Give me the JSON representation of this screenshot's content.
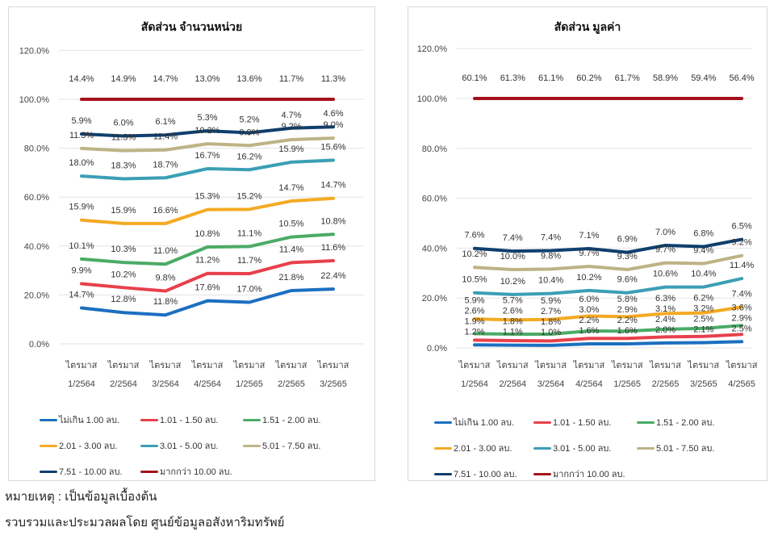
{
  "footer": {
    "note": "หมายเหตุ : เป็นข้อมูลเบื้องต้น",
    "source": "รวบรวมและประมวลผลโดย ศูนย์ข้อมูลอสังหาริมทรัพย์"
  },
  "chart_data": [
    {
      "type": "line",
      "stacked": true,
      "title": "สัดส่วน จำนวนหน่วย",
      "category_prefix": "ไตรมาส",
      "categories": [
        "1/2564",
        "2/2564",
        "3/2564",
        "4/2564",
        "1/2565",
        "2/2565",
        "3/2565"
      ],
      "yticks": [
        "0.0%",
        "20.0%",
        "40.0%",
        "60.0%",
        "80.0%",
        "100.0%",
        "120.0%"
      ],
      "ylim": [
        0,
        120
      ],
      "legend": "bottom",
      "series": [
        {
          "name": "ไม่เกิน 1.00 ลบ.",
          "color": "#1b6fc0",
          "values": [
            14.7,
            12.8,
            11.8,
            17.6,
            17.0,
            21.8,
            22.4
          ]
        },
        {
          "name": "1.01 - 1.50 ลบ.",
          "color": "#e8404c",
          "values": [
            9.9,
            10.2,
            9.8,
            11.2,
            11.7,
            11.4,
            11.6
          ]
        },
        {
          "name": "1.51 - 2.00 ลบ.",
          "color": "#4bab66",
          "values": [
            10.1,
            10.3,
            11.0,
            10.8,
            11.1,
            10.5,
            10.8
          ]
        },
        {
          "name": "2.01 - 3.00 ลบ.",
          "color": "#f4aa23",
          "values": [
            15.9,
            15.9,
            16.6,
            15.3,
            15.2,
            14.7,
            14.7
          ]
        },
        {
          "name": "3.01 - 5.00 ลบ.",
          "color": "#3b9fb5",
          "values": [
            18.0,
            18.3,
            18.7,
            16.7,
            16.2,
            15.9,
            15.6
          ]
        },
        {
          "name": "5.01 - 7.50 ลบ.",
          "color": "#bdb385",
          "values": [
            11.3,
            11.5,
            11.4,
            10.2,
            9.9,
            9.2,
            9.0
          ]
        },
        {
          "name": "7.51 - 10.00 ลบ.",
          "color": "#0f3f6e",
          "values": [
            5.9,
            6.0,
            6.1,
            5.3,
            5.2,
            4.7,
            4.6
          ]
        },
        {
          "name": "มากกว่า 10.00 ลบ.",
          "color": "#a5121c",
          "values": [
            14.4,
            14.9,
            14.7,
            13.0,
            13.6,
            11.7,
            11.3
          ]
        }
      ]
    },
    {
      "type": "line",
      "stacked": true,
      "title": "สัดส่วน มูลค่า",
      "category_prefix": "ไตรมาส",
      "categories": [
        "1/2564",
        "2/2564",
        "3/2564",
        "4/2564",
        "1/2565",
        "2/2565",
        "3/2565",
        "4/2565"
      ],
      "yticks": [
        "0.0%",
        "20.0%",
        "40.0%",
        "60.0%",
        "80.0%",
        "100.0%",
        "120.0%"
      ],
      "ylim": [
        0,
        120
      ],
      "legend": "bottom",
      "series": [
        {
          "name": "ไม่เกิน 1.00 ลบ.",
          "color": "#1b6fc0",
          "values": [
            1.2,
            1.1,
            1.0,
            1.6,
            1.6,
            2.0,
            2.1,
            2.5
          ]
        },
        {
          "name": "1.01 - 1.50 ลบ.",
          "color": "#e8404c",
          "values": [
            1.9,
            1.8,
            1.8,
            2.2,
            2.2,
            2.4,
            2.5,
            2.9
          ]
        },
        {
          "name": "1.51 - 2.00 ลบ.",
          "color": "#4bab66",
          "values": [
            2.6,
            2.6,
            2.7,
            3.0,
            2.9,
            3.1,
            3.2,
            3.6
          ]
        },
        {
          "name": "2.01 - 3.00 ลบ.",
          "color": "#f4aa23",
          "values": [
            5.9,
            5.7,
            5.9,
            6.0,
            5.8,
            6.3,
            6.2,
            7.4
          ]
        },
        {
          "name": "3.01 - 5.00 ลบ.",
          "color": "#3b9fb5",
          "values": [
            10.5,
            10.2,
            10.4,
            10.2,
            9.6,
            10.6,
            10.4,
            11.4
          ]
        },
        {
          "name": "5.01 - 7.50 ลบ.",
          "color": "#bdb385",
          "values": [
            10.2,
            10.0,
            9.8,
            9.7,
            9.3,
            9.7,
            9.4,
            9.2
          ]
        },
        {
          "name": "7.51 - 10.00 ลบ.",
          "color": "#0f3f6e",
          "values": [
            7.6,
            7.4,
            7.4,
            7.1,
            6.9,
            7.0,
            6.8,
            6.5
          ]
        },
        {
          "name": "มากกว่า 10.00 ลบ.",
          "color": "#a5121c",
          "values": [
            60.1,
            61.3,
            61.1,
            60.2,
            61.7,
            58.9,
            59.4,
            56.4
          ]
        }
      ]
    }
  ]
}
